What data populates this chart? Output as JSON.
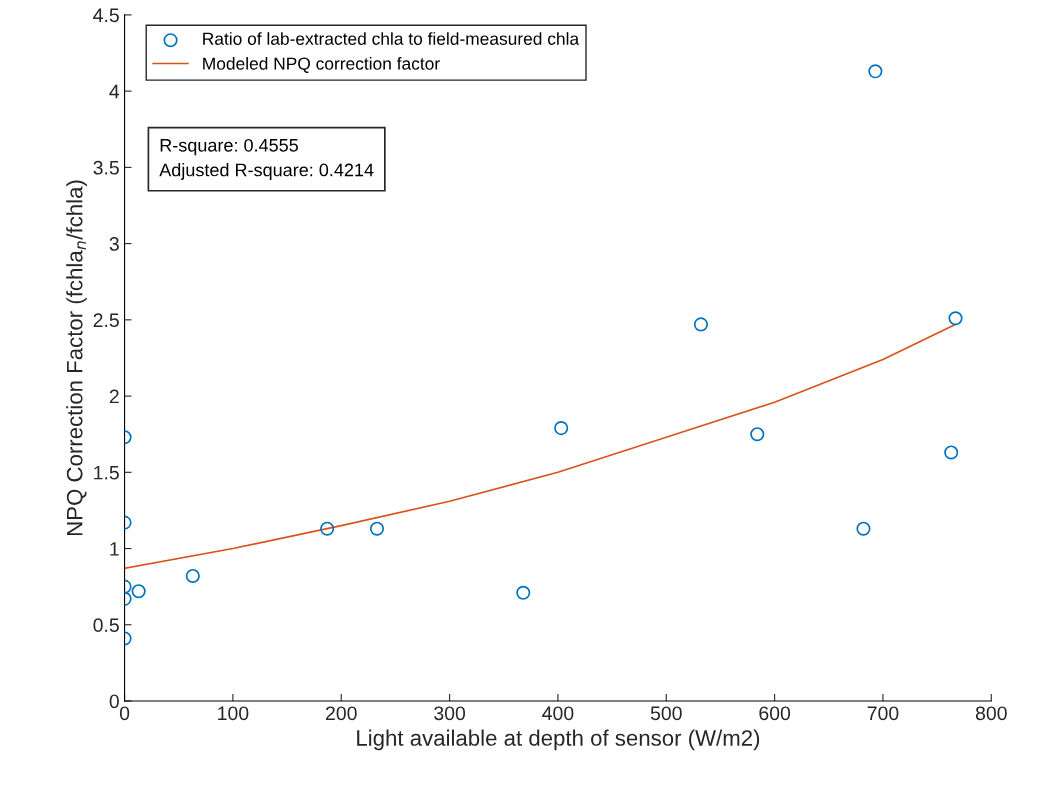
{
  "chart_data": {
    "type": "scatter",
    "xlabel": "Light available at depth of sensor (W/m2)",
    "ylabel": "NPQ Correction Factor (fchla$_{n}$/fchla)",
    "xlim": [
      0,
      800
    ],
    "xticks": [
      0,
      100,
      200,
      300,
      400,
      500,
      600,
      700,
      800
    ],
    "ylim": [
      0,
      4.5
    ],
    "yticks": [
      0,
      0.5,
      1,
      1.5,
      2,
      2.5,
      3,
      3.5,
      4,
      4.5
    ],
    "grid": false,
    "legend": "top left",
    "marker": "circle",
    "annotations": [
      "R-square: 0.4555",
      "Adjusted R-square: 0.4214"
    ],
    "series": [
      {
        "name": "Ratio of lab-extracted chla to field-measured chla",
        "color": "#0072bd",
        "x": [
          0,
          0,
          0,
          0,
          0,
          13,
          63,
          187,
          233,
          368,
          403,
          532,
          584,
          682,
          693,
          763,
          767
        ],
        "values": [
          1.73,
          1.17,
          0.75,
          0.67,
          0.41,
          0.72,
          0.82,
          1.13,
          1.13,
          0.71,
          1.79,
          2.47,
          1.75,
          1.13,
          4.13,
          1.63,
          2.51
        ]
      },
      {
        "name": "Modeled NPQ correction factor",
        "type": "line",
        "marker": "none",
        "color": "#d95319",
        "x": [
          0,
          100,
          200,
          300,
          400,
          500,
          600,
          700,
          767
        ],
        "values": [
          0.87,
          1.0,
          1.15,
          1.31,
          1.5,
          1.73,
          1.96,
          2.24,
          2.47
        ]
      }
    ]
  }
}
